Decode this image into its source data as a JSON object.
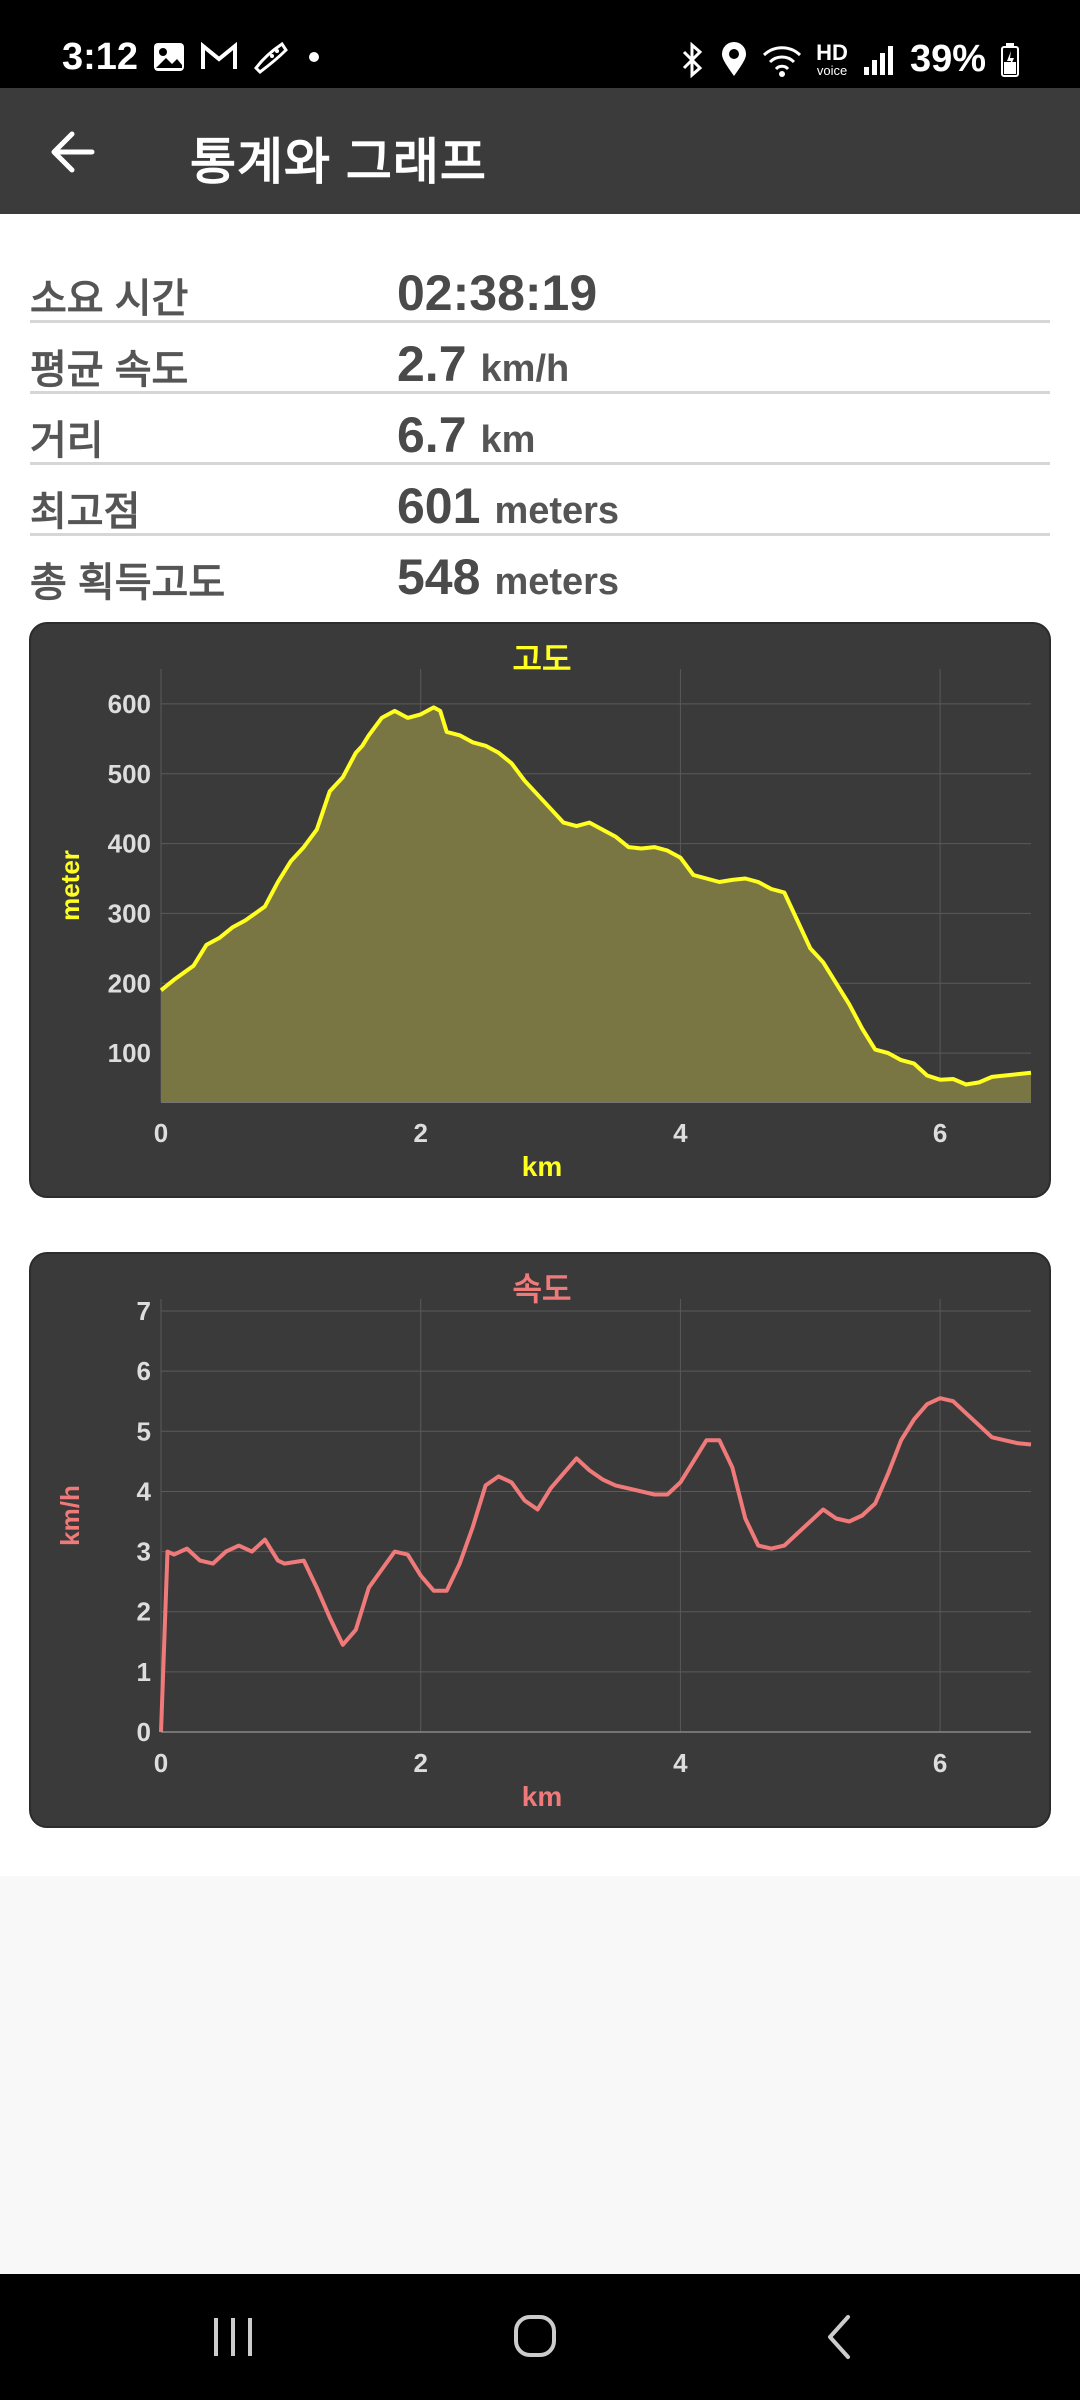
{
  "status_bar": {
    "time": "3:12",
    "battery": "39%",
    "hd_label": "HD",
    "voice_label": "voice",
    "icons": [
      "gallery-icon",
      "gmail-icon",
      "shoe-icon",
      "dot-icon",
      "bluetooth-icon",
      "location-icon",
      "wifi-icon",
      "signal-icon",
      "battery-icon"
    ]
  },
  "app_bar": {
    "title": "통계와 그래프"
  },
  "stats": [
    {
      "label": "소요 시간",
      "value": "02:38:19",
      "unit": ""
    },
    {
      "label": "평균 속도",
      "value": "2.7",
      "unit": "km/h"
    },
    {
      "label": "거리",
      "value": "6.7",
      "unit": "km"
    },
    {
      "label": "최고점",
      "value": "601",
      "unit": "meters"
    },
    {
      "label": "총 획득고도",
      "value": "548",
      "unit": "meters"
    }
  ],
  "chart_data": [
    {
      "type": "area",
      "title": "고도",
      "xlabel": "km",
      "ylabel": "meter",
      "xlim": [
        0,
        6.7
      ],
      "ylim": [
        30,
        650
      ],
      "xticks": [
        0,
        2,
        4,
        6
      ],
      "yticks": [
        100,
        200,
        300,
        400,
        500,
        600
      ],
      "grid": true,
      "color": "#ffff22",
      "fill": "#7a7644",
      "x": [
        0,
        0.1,
        0.25,
        0.35,
        0.45,
        0.55,
        0.65,
        0.8,
        0.9,
        1.0,
        1.1,
        1.2,
        1.3,
        1.4,
        1.5,
        1.55,
        1.6,
        1.7,
        1.8,
        1.9,
        2.0,
        2.1,
        2.15,
        2.2,
        2.3,
        2.4,
        2.5,
        2.6,
        2.7,
        2.8,
        2.9,
        3.0,
        3.1,
        3.2,
        3.3,
        3.4,
        3.5,
        3.6,
        3.7,
        3.8,
        3.9,
        4.0,
        4.1,
        4.2,
        4.3,
        4.4,
        4.5,
        4.6,
        4.7,
        4.8,
        4.9,
        5.0,
        5.1,
        5.2,
        5.3,
        5.4,
        5.5,
        5.6,
        5.7,
        5.8,
        5.9,
        6.0,
        6.1,
        6.2,
        6.3,
        6.4,
        6.5,
        6.6,
        6.7
      ],
      "y": [
        190,
        205,
        225,
        255,
        265,
        280,
        290,
        310,
        345,
        375,
        395,
        420,
        475,
        495,
        530,
        540,
        555,
        580,
        590,
        580,
        585,
        595,
        590,
        560,
        555,
        545,
        540,
        530,
        515,
        490,
        470,
        450,
        430,
        425,
        430,
        420,
        410,
        395,
        393,
        395,
        390,
        380,
        355,
        350,
        345,
        348,
        350,
        345,
        335,
        330,
        290,
        250,
        230,
        200,
        170,
        135,
        105,
        100,
        90,
        85,
        68,
        62,
        63,
        55,
        58,
        66,
        68,
        70,
        72
      ]
    },
    {
      "type": "line",
      "title": "속도",
      "xlabel": "km",
      "ylabel": "km/h",
      "xlim": [
        0,
        6.7
      ],
      "ylim": [
        0,
        7.2
      ],
      "xticks": [
        0,
        2,
        4,
        6
      ],
      "yticks": [
        0,
        1,
        2,
        3,
        4,
        5,
        6,
        7
      ],
      "grid": true,
      "color": "#f07a7a",
      "x": [
        0,
        0.05,
        0.1,
        0.2,
        0.3,
        0.4,
        0.5,
        0.6,
        0.7,
        0.8,
        0.9,
        0.95,
        1.1,
        1.2,
        1.3,
        1.4,
        1.5,
        1.6,
        1.7,
        1.8,
        1.9,
        2.0,
        2.1,
        2.2,
        2.3,
        2.4,
        2.5,
        2.6,
        2.7,
        2.8,
        2.9,
        3.0,
        3.1,
        3.2,
        3.3,
        3.4,
        3.5,
        3.6,
        3.7,
        3.8,
        3.9,
        4.0,
        4.1,
        4.2,
        4.3,
        4.4,
        4.5,
        4.6,
        4.7,
        4.8,
        4.9,
        5.0,
        5.1,
        5.2,
        5.3,
        5.4,
        5.5,
        5.6,
        5.7,
        5.8,
        5.9,
        6.0,
        6.1,
        6.2,
        6.3,
        6.4,
        6.5,
        6.6,
        6.7
      ],
      "y": [
        0,
        3.0,
        2.95,
        3.05,
        2.85,
        2.8,
        3.0,
        3.1,
        3.0,
        3.2,
        2.85,
        2.8,
        2.85,
        2.4,
        1.9,
        1.45,
        1.7,
        2.4,
        2.7,
        3.0,
        2.95,
        2.6,
        2.35,
        2.35,
        2.8,
        3.4,
        4.1,
        4.25,
        4.15,
        3.85,
        3.7,
        4.05,
        4.3,
        4.55,
        4.35,
        4.2,
        4.1,
        4.05,
        4.0,
        3.95,
        3.95,
        4.15,
        4.5,
        4.85,
        4.85,
        4.4,
        3.55,
        3.1,
        3.05,
        3.1,
        3.3,
        3.5,
        3.7,
        3.55,
        3.5,
        3.6,
        3.8,
        4.3,
        4.85,
        5.2,
        5.45,
        5.55,
        5.5,
        5.3,
        5.1,
        4.9,
        4.85,
        4.8,
        4.78
      ]
    }
  ]
}
